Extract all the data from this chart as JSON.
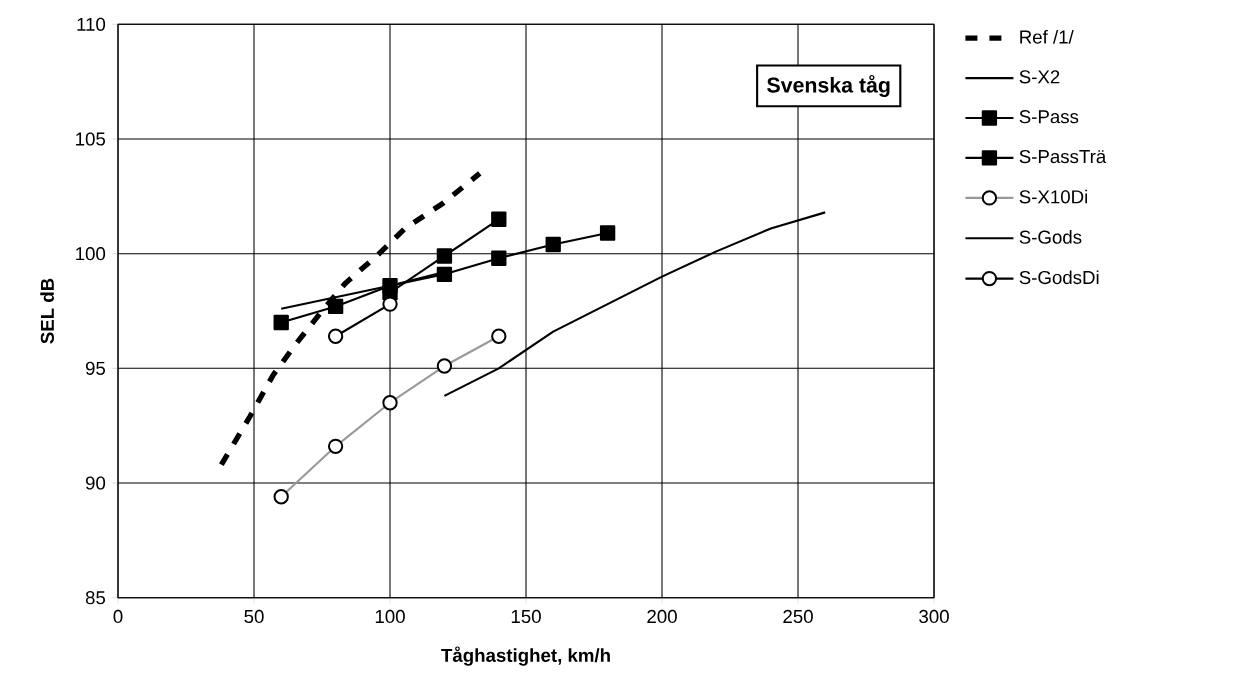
{
  "chart_data": {
    "type": "line",
    "xlabel": "Tåghastighet, km/h",
    "ylabel": "SEL dB",
    "xlim": [
      0,
      300
    ],
    "xticks": [
      0,
      50,
      100,
      150,
      200,
      250,
      300
    ],
    "ylim": [
      85,
      110
    ],
    "yticks": [
      85,
      90,
      95,
      100,
      105,
      110
    ],
    "grid": true,
    "legend": "right",
    "annotations": [
      "Svenska tåg"
    ],
    "series": [
      {
        "name": "Ref /1/",
        "color": "#000000",
        "line_style": "dashed",
        "marker": "none",
        "x": [
          38,
          48.5,
          57,
          65,
          75,
          83.5,
          96,
          105.5,
          119.5,
          133
        ],
        "values": [
          90.8,
          92.9,
          94.7,
          96.0,
          97.5,
          98.7,
          100.0,
          101.1,
          102.2,
          103.5
        ]
      },
      {
        "name": "S-X2",
        "color": "#000000",
        "line_style": "solid",
        "marker": "none",
        "x": [
          120,
          140,
          160,
          180,
          200,
          220,
          240,
          260
        ],
        "values": [
          93.8,
          95.0,
          96.6,
          97.8,
          99.0,
          100.1,
          101.1,
          101.8
        ]
      },
      {
        "name": "S-Pass",
        "color": "#000000",
        "line_style": "solid",
        "marker": "square",
        "x": [
          60,
          80,
          100,
          120,
          140,
          160,
          180
        ],
        "values": [
          97.0,
          97.7,
          98.6,
          99.1,
          99.8,
          100.4,
          100.9
        ]
      },
      {
        "name": "S-PassTrä",
        "color": "#000000",
        "line_style": "solid",
        "marker": "square",
        "x": [
          100,
          120,
          140
        ],
        "values": [
          98.3,
          99.9,
          101.5
        ]
      },
      {
        "name": "S-X10Di",
        "color": "#999999",
        "line_style": "solid",
        "marker": "circle",
        "x": [
          60,
          80,
          100,
          120,
          140
        ],
        "values": [
          89.4,
          91.6,
          93.5,
          95.1,
          96.4
        ]
      },
      {
        "name": "S-Gods",
        "color": "#000000",
        "line_style": "solid",
        "marker": "none",
        "x": [
          60,
          100,
          120
        ],
        "values": [
          97.6,
          98.6,
          99.2
        ]
      },
      {
        "name": "S-GodsDi",
        "color": "#000000",
        "line_style": "solid",
        "marker": "circle",
        "x": [
          80,
          100
        ],
        "values": [
          96.4,
          97.8
        ]
      }
    ]
  }
}
